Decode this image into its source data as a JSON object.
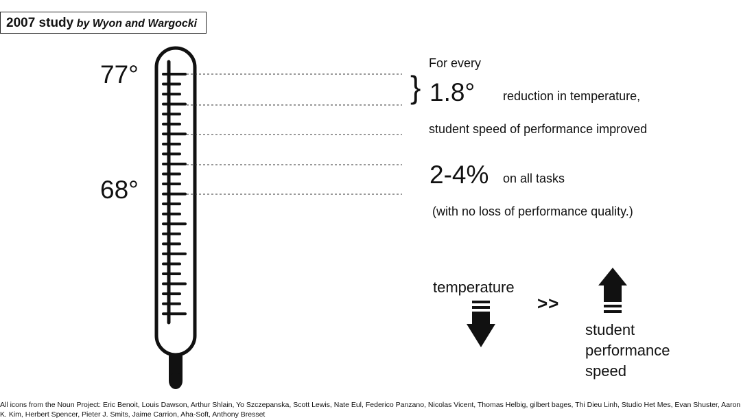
{
  "title": {
    "main": "2007 study",
    "sub": "by Wyon and Wargocki"
  },
  "thermometer": {
    "label_high": "77°",
    "label_low": "68°"
  },
  "finding": {
    "line1": "For every",
    "change_value": "1.8°",
    "line2_rest": "reduction in temperature,",
    "line3": "student speed of performance improved",
    "improvement_value": "2-4%",
    "line4_rest": "on all tasks",
    "line5": "(with no loss of performance quality.)"
  },
  "relation": {
    "left_label": "temperature",
    "operator": ">>",
    "right_label_lines": [
      "student",
      "performance",
      "speed"
    ]
  },
  "icons": {
    "thermometer": "thermometer-icon",
    "down": "down-arrow-icon",
    "up": "up-arrow-icon",
    "brace": "curly-brace-icon"
  },
  "credits": "All icons from the Noun Project: Eric Benoit, Louis Dawson, Arthur Shlain, Yo Szczepanska, Scott Lewis, Nate Eul, Federico Panzano, Nicolas Vicent, Thomas Helbig, gilbert bages, Thi Dieu Linh, Studio Het Mes, Evan Shuster, Aaron K. Kim, Herbert Spencer, Pieter J. Smits, Jaime Carrion, Aha-Soft, Anthony Bresset"
}
